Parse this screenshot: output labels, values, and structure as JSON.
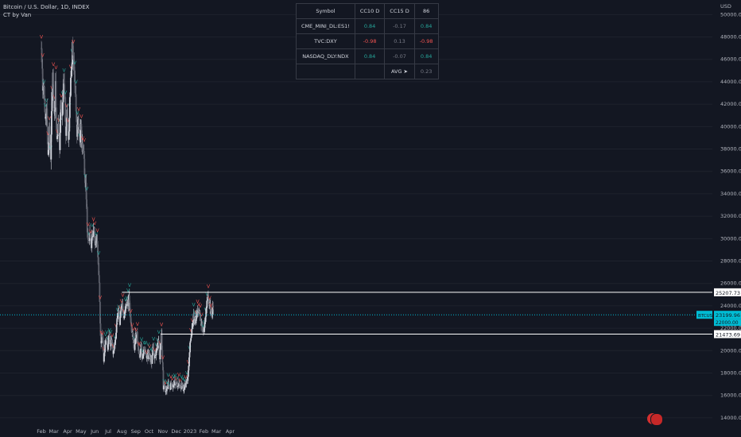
{
  "header": {
    "title": "Bitcoin / U.S. Dollar, 1D, INDEX",
    "indicator": "CT by Van"
  },
  "table": {
    "headers": [
      "Symbol",
      "CC10 D",
      "CC15 D",
      "86"
    ],
    "rows": [
      {
        "symbol": "CME_MINI_DL:ES1!",
        "cc10": "0.84",
        "cc15": "-0.17",
        "c3": "0.84",
        "cc10_class": "pos",
        "cc15_class": "neu",
        "c3_class": "pos"
      },
      {
        "symbol": "TVC:DXY",
        "cc10": "-0.98",
        "cc15": "0.13",
        "c3": "-0.98",
        "cc10_class": "neg",
        "cc15_class": "neu",
        "c3_class": "neg"
      },
      {
        "symbol": "NASDAQ_DLY:NDX",
        "cc10": "0.84",
        "cc15": "-0.07",
        "c3": "0.84",
        "cc10_class": "pos",
        "cc15_class": "neu",
        "c3_class": "pos"
      }
    ],
    "avg_label": "AVG ➤",
    "avg_value": "0.23"
  },
  "chart_data": {
    "type": "candlestick",
    "symbol": "Bitcoin / U.S. Dollar, 1D, INDEX",
    "currency": "USD",
    "y_ticks": [
      14000,
      16000,
      18000,
      20000,
      22000,
      24000,
      26000,
      28000,
      30000,
      32000,
      34000,
      36000,
      38000,
      40000,
      42000,
      44000,
      46000,
      48000,
      50000
    ],
    "ylim": [
      13000,
      51300
    ],
    "x_ticks": [
      "Feb",
      "Mar",
      "Apr",
      "May",
      "Jun",
      "Jul",
      "Aug",
      "Sep",
      "Oct",
      "Nov",
      "Dec",
      "2023",
      "Feb",
      "Mar",
      "Apr"
    ],
    "price_path": [
      [
        0,
        47000
      ],
      [
        3,
        43500
      ],
      [
        6,
        44000
      ],
      [
        9,
        40500
      ],
      [
        12,
        41800
      ],
      [
        15,
        37200
      ],
      [
        18,
        39500
      ],
      [
        21,
        36800
      ],
      [
        24,
        43000
      ],
      [
        26,
        44500
      ],
      [
        29,
        41000
      ],
      [
        32,
        43800
      ],
      [
        35,
        38500
      ],
      [
        38,
        40500
      ],
      [
        41,
        38000
      ],
      [
        44,
        42500
      ],
      [
        47,
        41200
      ],
      [
        50,
        44000
      ],
      [
        53,
        42000
      ],
      [
        55,
        39000
      ],
      [
        58,
        41000
      ],
      [
        61,
        38300
      ],
      [
        64,
        42500
      ],
      [
        67,
        44500
      ],
      [
        70,
        47000
      ],
      [
        72,
        46500
      ],
      [
        74,
        45000
      ],
      [
        77,
        43000
      ],
      [
        80,
        39500
      ],
      [
        83,
        40500
      ],
      [
        86,
        38700
      ],
      [
        89,
        39800
      ],
      [
        92,
        38000
      ],
      [
        95,
        37800
      ],
      [
        98,
        35500
      ],
      [
        101,
        34000
      ],
      [
        103,
        31000
      ],
      [
        106,
        29800
      ],
      [
        109,
        30500
      ],
      [
        112,
        29500
      ],
      [
        115,
        30200
      ],
      [
        118,
        31000
      ],
      [
        121,
        29500
      ],
      [
        124,
        30200
      ],
      [
        127,
        28500
      ],
      [
        130,
        26000
      ],
      [
        132,
        22500
      ],
      [
        134,
        20800
      ],
      [
        137,
        21500
      ],
      [
        140,
        19300
      ],
      [
        143,
        20500
      ],
      [
        146,
        21000
      ],
      [
        149,
        20200
      ],
      [
        152,
        21500
      ],
      [
        155,
        20500
      ],
      [
        158,
        21200
      ],
      [
        161,
        19900
      ],
      [
        164,
        20500
      ],
      [
        167,
        21300
      ],
      [
        170,
        22700
      ],
      [
        173,
        23300
      ],
      [
        176,
        22600
      ],
      [
        179,
        23500
      ],
      [
        182,
        24000
      ],
      [
        185,
        22900
      ],
      [
        188,
        23900
      ],
      [
        191,
        24400
      ],
      [
        194,
        24200
      ],
      [
        197,
        24600
      ],
      [
        200,
        23200
      ],
      [
        203,
        21500
      ],
      [
        206,
        21300
      ],
      [
        209,
        20200
      ],
      [
        212,
        21300
      ],
      [
        215,
        21500
      ],
      [
        218,
        20000
      ],
      [
        221,
        19600
      ],
      [
        224,
        20300
      ],
      [
        227,
        19200
      ],
      [
        230,
        20200
      ],
      [
        233,
        19800
      ],
      [
        236,
        19300
      ],
      [
        239,
        19500
      ],
      [
        242,
        19700
      ],
      [
        245,
        19200
      ],
      [
        248,
        19100
      ],
      [
        251,
        20300
      ],
      [
        254,
        19600
      ],
      [
        257,
        19400
      ],
      [
        260,
        20300
      ],
      [
        263,
        20700
      ],
      [
        266,
        19400
      ],
      [
        268,
        20700
      ],
      [
        270,
        21300
      ],
      [
        272,
        19200
      ],
      [
        274,
        16800
      ],
      [
        277,
        16600
      ],
      [
        280,
        16400
      ],
      [
        283,
        16800
      ],
      [
        286,
        17000
      ],
      [
        289,
        16500
      ],
      [
        292,
        17300
      ],
      [
        295,
        16900
      ],
      [
        298,
        17000
      ],
      [
        301,
        17100
      ],
      [
        304,
        17200
      ],
      [
        307,
        16800
      ],
      [
        310,
        17100
      ],
      [
        313,
        16600
      ],
      [
        316,
        16900
      ],
      [
        319,
        16600
      ],
      [
        322,
        16700
      ],
      [
        325,
        17000
      ],
      [
        328,
        17400
      ],
      [
        331,
        18800
      ],
      [
        334,
        20800
      ],
      [
        337,
        21200
      ],
      [
        340,
        22700
      ],
      [
        343,
        23100
      ],
      [
        346,
        22800
      ],
      [
        349,
        23500
      ],
      [
        352,
        23700
      ],
      [
        355,
        23200
      ],
      [
        358,
        22900
      ],
      [
        361,
        21800
      ],
      [
        364,
        21700
      ],
      [
        366,
        22200
      ],
      [
        369,
        23300
      ],
      [
        372,
        24500
      ],
      [
        375,
        24700
      ],
      [
        378,
        24000
      ],
      [
        381,
        23500
      ],
      [
        384,
        23300
      ],
      [
        386,
        23800
      ]
    ],
    "horizontal_lines": [
      {
        "label": "25207.73",
        "value": 25207.73
      },
      {
        "label": "21473.69",
        "value": 21473.69
      }
    ],
    "current_price": {
      "label": "BTCUSD",
      "value": "23199.96",
      "value_num": 23199.96
    },
    "sub_label": "22000.00"
  },
  "colors": {
    "background": "#131722",
    "up": "#26a69a",
    "down": "#ef5350",
    "candle": "#d1d4dc",
    "grid": "#1e222d",
    "current_line": "#00bcd4",
    "axis_text": "#b2b5be"
  }
}
